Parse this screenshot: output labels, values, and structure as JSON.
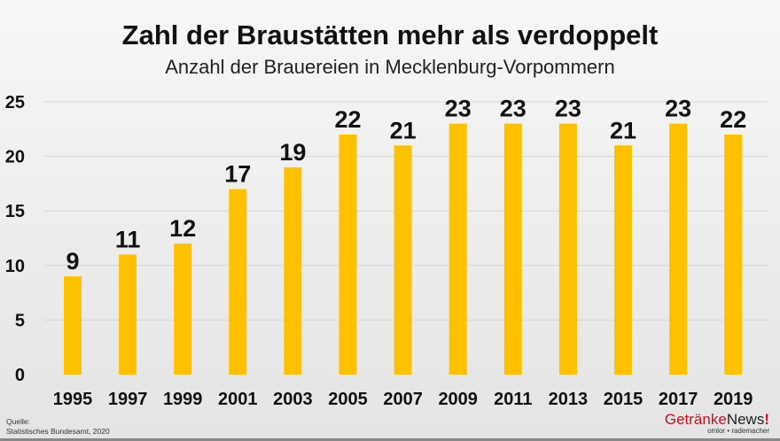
{
  "chart_data": {
    "type": "bar",
    "title": "Zahl der Braustätten mehr als verdoppelt",
    "subtitle": "Anzahl der Brauereien in Mecklenburg-Vorpommern",
    "categories": [
      "1995",
      "1997",
      "1999",
      "2001",
      "2003",
      "2005",
      "2007",
      "2009",
      "2011",
      "2013",
      "2015",
      "2017",
      "2019"
    ],
    "values": [
      9,
      11,
      12,
      17,
      19,
      22,
      21,
      23,
      23,
      23,
      21,
      23,
      22
    ],
    "ylim": [
      0,
      25
    ],
    "yticks": [
      0,
      5,
      10,
      15,
      20,
      25
    ],
    "grid": true,
    "bar_color": "#ffc000",
    "xlabel": "",
    "ylabel": ""
  },
  "source": {
    "label": "Quelle:",
    "text": "Statistisches Bundesamt, 2020"
  },
  "logo": {
    "part1": "Getränke",
    "part2": "News",
    "part3": "!",
    "tagline": "omlor • rademacher"
  }
}
